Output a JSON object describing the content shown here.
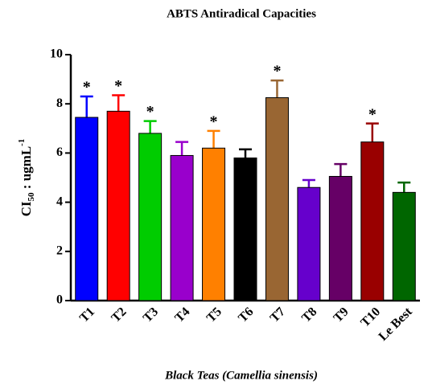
{
  "chart_data": {
    "type": "bar",
    "title": "ABTS Antiradical Capacities",
    "xlabel": "Black Teas (Camellia sinensis)",
    "ylabel": [
      "CI",
      "50",
      " : ugmL",
      "-1"
    ],
    "categories": [
      "T1",
      "T2",
      "T3",
      "T4",
      "T5",
      "T6",
      "T7",
      "T8",
      "T9",
      "T10",
      "Le Best"
    ],
    "values": [
      7.45,
      7.7,
      6.8,
      5.9,
      6.2,
      5.8,
      8.25,
      4.6,
      5.05,
      6.45,
      4.4
    ],
    "errors": [
      0.85,
      0.65,
      0.5,
      0.55,
      0.7,
      0.35,
      0.7,
      0.3,
      0.5,
      0.75,
      0.4
    ],
    "annotations": [
      "*",
      "*",
      "*",
      null,
      "*",
      null,
      "*",
      null,
      null,
      "*",
      null
    ],
    "colors": [
      "#0000ff",
      "#ff0000",
      "#00cc00",
      "#9900cc",
      "#ff8000",
      "#000000",
      "#996633",
      "#6600cc",
      "#660066",
      "#990000",
      "#006600"
    ],
    "ylim": [
      0,
      10
    ],
    "yticks": [
      0,
      2,
      4,
      6,
      8,
      10
    ]
  }
}
